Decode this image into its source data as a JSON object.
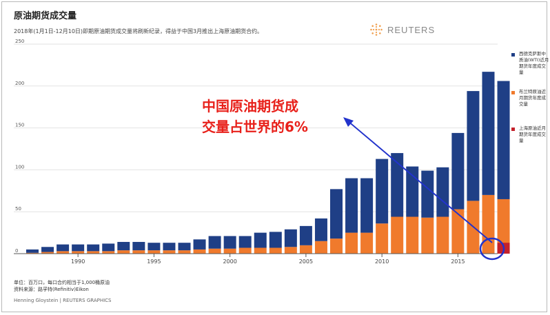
{
  "title": "原油期货成交量",
  "subtitle": "2018年(1月1日-12月10日)即期原油期货成交量将刷新纪录，得益于中国3月推出上海原油期货合约。",
  "logo": {
    "icon": "reuters-logo-icon",
    "text": "REUTERS"
  },
  "annotation": {
    "line1": "中国原油期货成",
    "line2": "交量占世界的6%",
    "color": "#e8201a"
  },
  "legend": [
    {
      "label": "西德克萨斯中质油(WTI)近月期货年度成交量",
      "color": "#1f3f86"
    },
    {
      "label": "布兰特原油近月期货年度成交量",
      "color": "#f07a2c"
    },
    {
      "label": "上海原油近月期货年度成交量",
      "color": "#c4212b"
    }
  ],
  "notes": {
    "unit": "单位：百万口，每口合约相当于1,000桶原油",
    "source": "资料来源：路孚特(Refinitiv)Eikon"
  },
  "credit": "Henning Gloystein | REUTERS GRAPHICS",
  "chart_data": {
    "type": "bar",
    "stacked": true,
    "title": "原油期货成交量",
    "xlabel": "",
    "ylabel": "",
    "ylim": [
      0,
      250
    ],
    "yticks": [
      0,
      50,
      100,
      150,
      200,
      250
    ],
    "xticks": [
      1990,
      1995,
      2000,
      2005,
      2010,
      2015
    ],
    "categories": [
      1987,
      1988,
      1989,
      1990,
      1991,
      1992,
      1993,
      1994,
      1995,
      1996,
      1997,
      1998,
      1999,
      2000,
      2001,
      2002,
      2003,
      2004,
      2005,
      2006,
      2007,
      2008,
      2009,
      2010,
      2011,
      2012,
      2013,
      2014,
      2015,
      2016,
      2017,
      2018
    ],
    "series": [
      {
        "name": "西德克萨斯中质油(WTI)近月期货年度成交量",
        "color": "#1f3f86",
        "values": [
          4,
          6,
          8,
          8,
          8,
          9,
          10,
          10,
          9,
          9,
          9,
          12,
          15,
          15,
          14,
          18,
          19,
          21,
          23,
          27,
          59,
          65,
          65,
          77,
          76,
          60,
          56,
          59,
          91,
          131,
          147,
          141
        ]
      },
      {
        "name": "布兰特原油近月期货年度成交量",
        "color": "#f07a2c",
        "values": [
          1,
          2,
          3,
          3,
          3,
          3,
          4,
          4,
          4,
          4,
          4,
          5,
          6,
          6,
          7,
          7,
          7,
          8,
          10,
          15,
          18,
          25,
          25,
          36,
          44,
          44,
          43,
          44,
          53,
          63,
          70,
          65
        ]
      },
      {
        "name": "上海原油近月期货年度成交量",
        "color": "#c4212b",
        "values": [
          0,
          0,
          0,
          0,
          0,
          0,
          0,
          0,
          0,
          0,
          0,
          0,
          0,
          0,
          0,
          0,
          0,
          0,
          0,
          0,
          0,
          0,
          0,
          0,
          0,
          0,
          0,
          0,
          0,
          0,
          0,
          13
        ]
      }
    ]
  }
}
